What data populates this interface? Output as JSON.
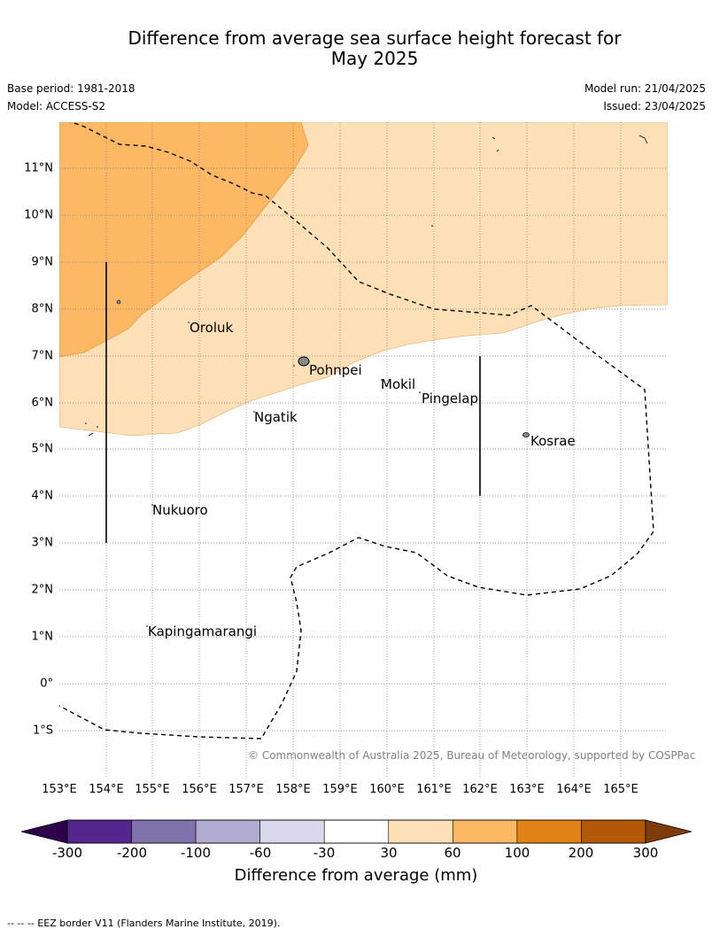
{
  "title_line1": "Difference from average sea surface height forecast for",
  "title_line2": "May 2025",
  "base_period": "Base period: 1981-2018",
  "model": "Model: ACCESS-S2",
  "model_run": "Model run: 21/04/2025",
  "issued": "Issued: 23/04/2025",
  "copyright": "© Commonwealth of Australia 2025, Bureau of Meteorology, supported by COSPPac",
  "longitude_labels": [
    "153°E",
    "154°E",
    "155°E",
    "156°E",
    "157°E",
    "158°E",
    "159°E",
    "160°E",
    "161°E",
    "162°E",
    "163°E",
    "164°E",
    "165°E"
  ],
  "latitude_labels": [
    "11°N",
    "10°N",
    "9°N",
    "8°N",
    "7°N",
    "6°N",
    "5°N",
    "4°N",
    "3°N",
    "2°N",
    "1°N",
    "0°",
    "1°S"
  ],
  "places": [
    {
      "name": "Oroluk",
      "lon": 155.8,
      "lat": 7.6
    },
    {
      "name": "Pohnpei",
      "lon": 158.2,
      "lat": 6.9
    },
    {
      "name": "Mokil",
      "lon": 159.8,
      "lat": 6.7
    },
    {
      "name": "Pingelap",
      "lon": 160.7,
      "lat": 6.2
    },
    {
      "name": "Ngatik",
      "lon": 157.1,
      "lat": 5.8
    },
    {
      "name": "Kosrae",
      "lon": 163.0,
      "lat": 5.3
    },
    {
      "name": "Nukuoro",
      "lon": 154.9,
      "lat": 3.8
    },
    {
      "name": "Kapingamarangi",
      "lon": 154.8,
      "lat": 1.1
    }
  ],
  "colorbar": {
    "label": "Difference from average (mm)",
    "ticks": [
      "-300",
      "-200",
      "-100",
      "-60",
      "-30",
      "30",
      "60",
      "100",
      "200",
      "300"
    ],
    "colors": [
      "#54278f",
      "#8073ac",
      "#b2abd2",
      "#d8daeb",
      "#ffffff",
      "#fee0b6",
      "#fdb863",
      "#e08214",
      "#b35806"
    ],
    "under_color": "#2d004b",
    "over_color": "#7f3b08"
  },
  "footnote": "--  --  -- EEZ border V11 (Flanders Marine Institute, 2019)."
}
